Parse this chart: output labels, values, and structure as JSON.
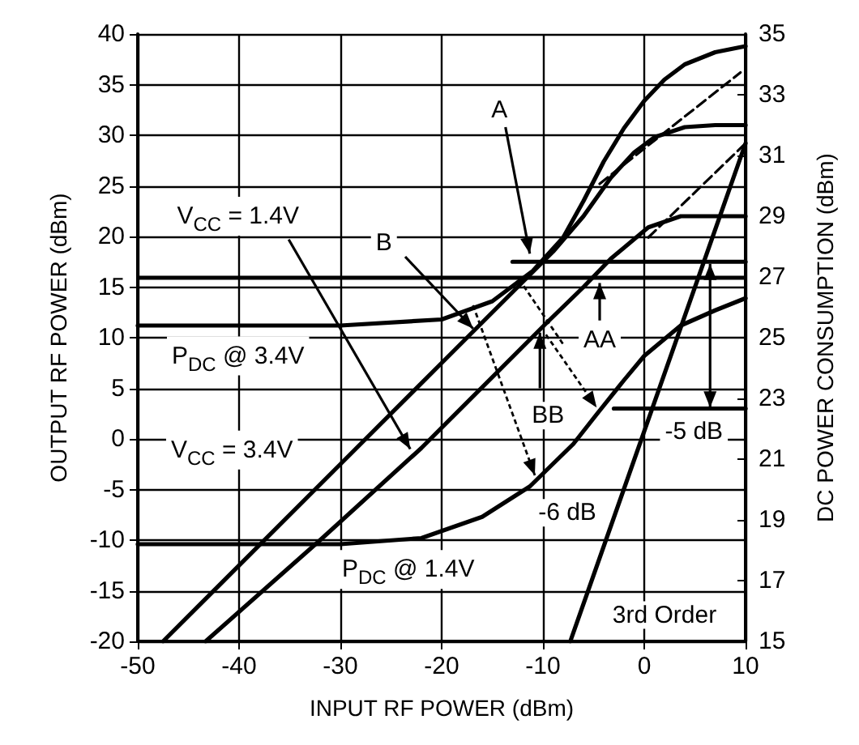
{
  "chart_data": {
    "type": "line",
    "xlabel": "INPUT RF POWER (dBm)",
    "ylabel": "OUTPUT RF POWER (dBm)",
    "y2label": "DC POWER CONSUMPTION (dBm)",
    "xlim": [
      -50,
      10
    ],
    "xticks": [
      -50,
      -40,
      -30,
      -20,
      -10,
      0,
      10
    ],
    "ylim": [
      -20,
      40
    ],
    "yticks": [
      -20,
      -15,
      -10,
      -5,
      0,
      5,
      10,
      15,
      20,
      25,
      30,
      35,
      40
    ],
    "y2lim": [
      15,
      35
    ],
    "y2ticks": [
      15,
      17,
      19,
      21,
      23,
      25,
      27,
      29,
      31,
      33,
      35
    ],
    "grid": true,
    "marker": "none",
    "line_style": "solid",
    "series": [
      {
        "color": "#000000",
        "x": [
          -47.5,
          -30,
          -20,
          -12,
          -9,
          -6,
          -3.3,
          -1,
          1,
          4,
          7,
          10
        ],
        "values": [
          -20,
          -2.5,
          7.5,
          15.5,
          18.5,
          22,
          25.8,
          28.3,
          29.8,
          30.8,
          31,
          31
        ]
      },
      {
        "color": "#000000",
        "x": [
          -43.3,
          -32,
          -22,
          -9.7,
          -6,
          -3.3,
          0.4,
          3.6,
          10
        ],
        "values": [
          -20,
          -10,
          -0.9,
          11.4,
          15,
          17.8,
          20.9,
          22,
          22
        ]
      },
      {
        "color": "#000000",
        "axis": "y2",
        "x": [
          -50,
          -30,
          -20,
          -15,
          -11,
          -8,
          -6,
          -4,
          -2,
          0,
          2,
          4,
          7,
          10
        ],
        "values": [
          25.4,
          25.4,
          25.6,
          26.2,
          27.2,
          28.3,
          29.5,
          30.8,
          31.9,
          32.8,
          33.5,
          34,
          34.4,
          34.6
        ]
      },
      {
        "color": "#000000",
        "axis": "y2",
        "x": [
          -50,
          -30,
          -22,
          -16,
          -11.3,
          -7,
          -4.4,
          -2,
          0,
          3.6,
          7,
          10
        ],
        "values": [
          18.2,
          18.2,
          18.4,
          19.1,
          20.1,
          21.5,
          22.6,
          23.6,
          24.4,
          25.4,
          25.9,
          26.3
        ]
      },
      {
        "color": "#000000",
        "x": [
          -4.4,
          9.5
        ],
        "values": [
          25.2,
          36.2
        ],
        "line_style": "dashed"
      },
      {
        "color": "#000000",
        "x": [
          0.4,
          10
        ],
        "values": [
          19.9,
          29.2
        ],
        "line_style": "dashed"
      },
      {
        "color": "#000000",
        "x": [
          -7.3,
          10
        ],
        "values": [
          -20,
          29.2
        ]
      },
      {
        "color": "#000000",
        "x": [
          -13,
          10
        ],
        "values": [
          17.5,
          17.5
        ]
      },
      {
        "color": "#000000",
        "x": [
          -3,
          10
        ],
        "values": [
          3,
          3
        ]
      }
    ],
    "ref_lines": [
      {
        "axis": "y2",
        "value": 27
      }
    ],
    "annotations": [
      {
        "text": "V$_{CC}$ = 1.4V",
        "x": -23.1,
        "y": -1
      },
      {
        "text": "B",
        "x": -25.7,
        "y": 19.4
      },
      {
        "text": "A",
        "x": -14.3,
        "y": 32.5
      },
      "P$_{DC}$ @ 3.4V",
      "V$_{CC}$ = 3.4V",
      "P$_{DC}$ @ 1.4V",
      {
        "text": "AA",
        "x": -4.4,
        "y": 9.8
      },
      {
        "text": "BB",
        "x": -9.5,
        "y": 2.3
      },
      {
        "text": "-5 dB",
        "x": 4.9,
        "y": 0.7
      },
      {
        "text": "-6 dB",
        "x": -7.6,
        "y": -7.3
      },
      "3rd Order"
    ]
  }
}
